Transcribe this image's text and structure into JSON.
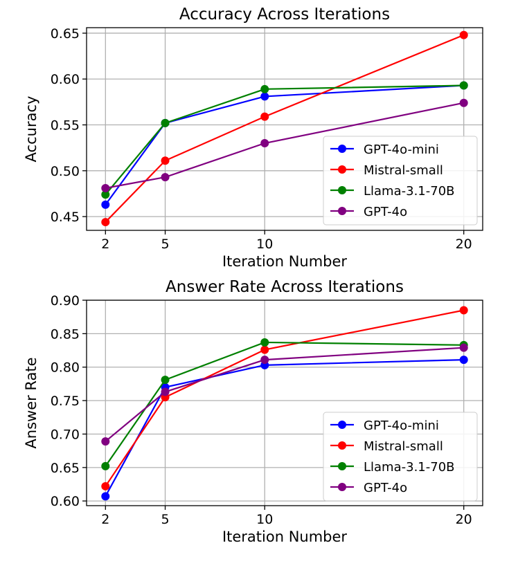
{
  "chart_data": [
    {
      "type": "line",
      "title": "Accuracy Across Iterations",
      "xlabel": "Iteration Number",
      "ylabel": "Accuracy",
      "x": [
        2,
        5,
        10,
        20
      ],
      "xticks": [
        "2",
        "5",
        "10",
        "20"
      ],
      "ylim": [
        0.435,
        0.656
      ],
      "yticks": [
        "0.45",
        "0.50",
        "0.55",
        "0.60",
        "0.65"
      ],
      "grid": true,
      "legend": "lower-right",
      "series": [
        {
          "name": "GPT-4o-mini",
          "color": "#0000ff",
          "values": [
            0.463,
            0.552,
            0.581,
            0.593
          ]
        },
        {
          "name": "Mistral-small",
          "color": "#ff0000",
          "values": [
            0.444,
            0.511,
            0.559,
            0.648
          ]
        },
        {
          "name": "Llama-3.1-70B",
          "color": "#008000",
          "values": [
            0.474,
            0.552,
            0.589,
            0.593
          ]
        },
        {
          "name": "GPT-4o",
          "color": "#800080",
          "values": [
            0.481,
            0.493,
            0.53,
            0.574
          ]
        }
      ]
    },
    {
      "type": "line",
      "title": "Answer Rate Across Iterations",
      "xlabel": "Iteration Number",
      "ylabel": "Answer Rate",
      "x": [
        2,
        5,
        10,
        20
      ],
      "xticks": [
        "2",
        "5",
        "10",
        "20"
      ],
      "ylim": [
        0.593,
        0.9
      ],
      "yticks": [
        "0.60",
        "0.65",
        "0.70",
        "0.75",
        "0.80",
        "0.85",
        "0.90"
      ],
      "grid": true,
      "legend": "lower-right",
      "series": [
        {
          "name": "GPT-4o-mini",
          "color": "#0000ff",
          "values": [
            0.607,
            0.77,
            0.803,
            0.811
          ]
        },
        {
          "name": "Mistral-small",
          "color": "#ff0000",
          "values": [
            0.622,
            0.755,
            0.826,
            0.885
          ]
        },
        {
          "name": "Llama-3.1-70B",
          "color": "#008000",
          "values": [
            0.652,
            0.781,
            0.837,
            0.833
          ]
        },
        {
          "name": "GPT-4o",
          "color": "#800080",
          "values": [
            0.689,
            0.763,
            0.811,
            0.829
          ]
        }
      ]
    }
  ]
}
